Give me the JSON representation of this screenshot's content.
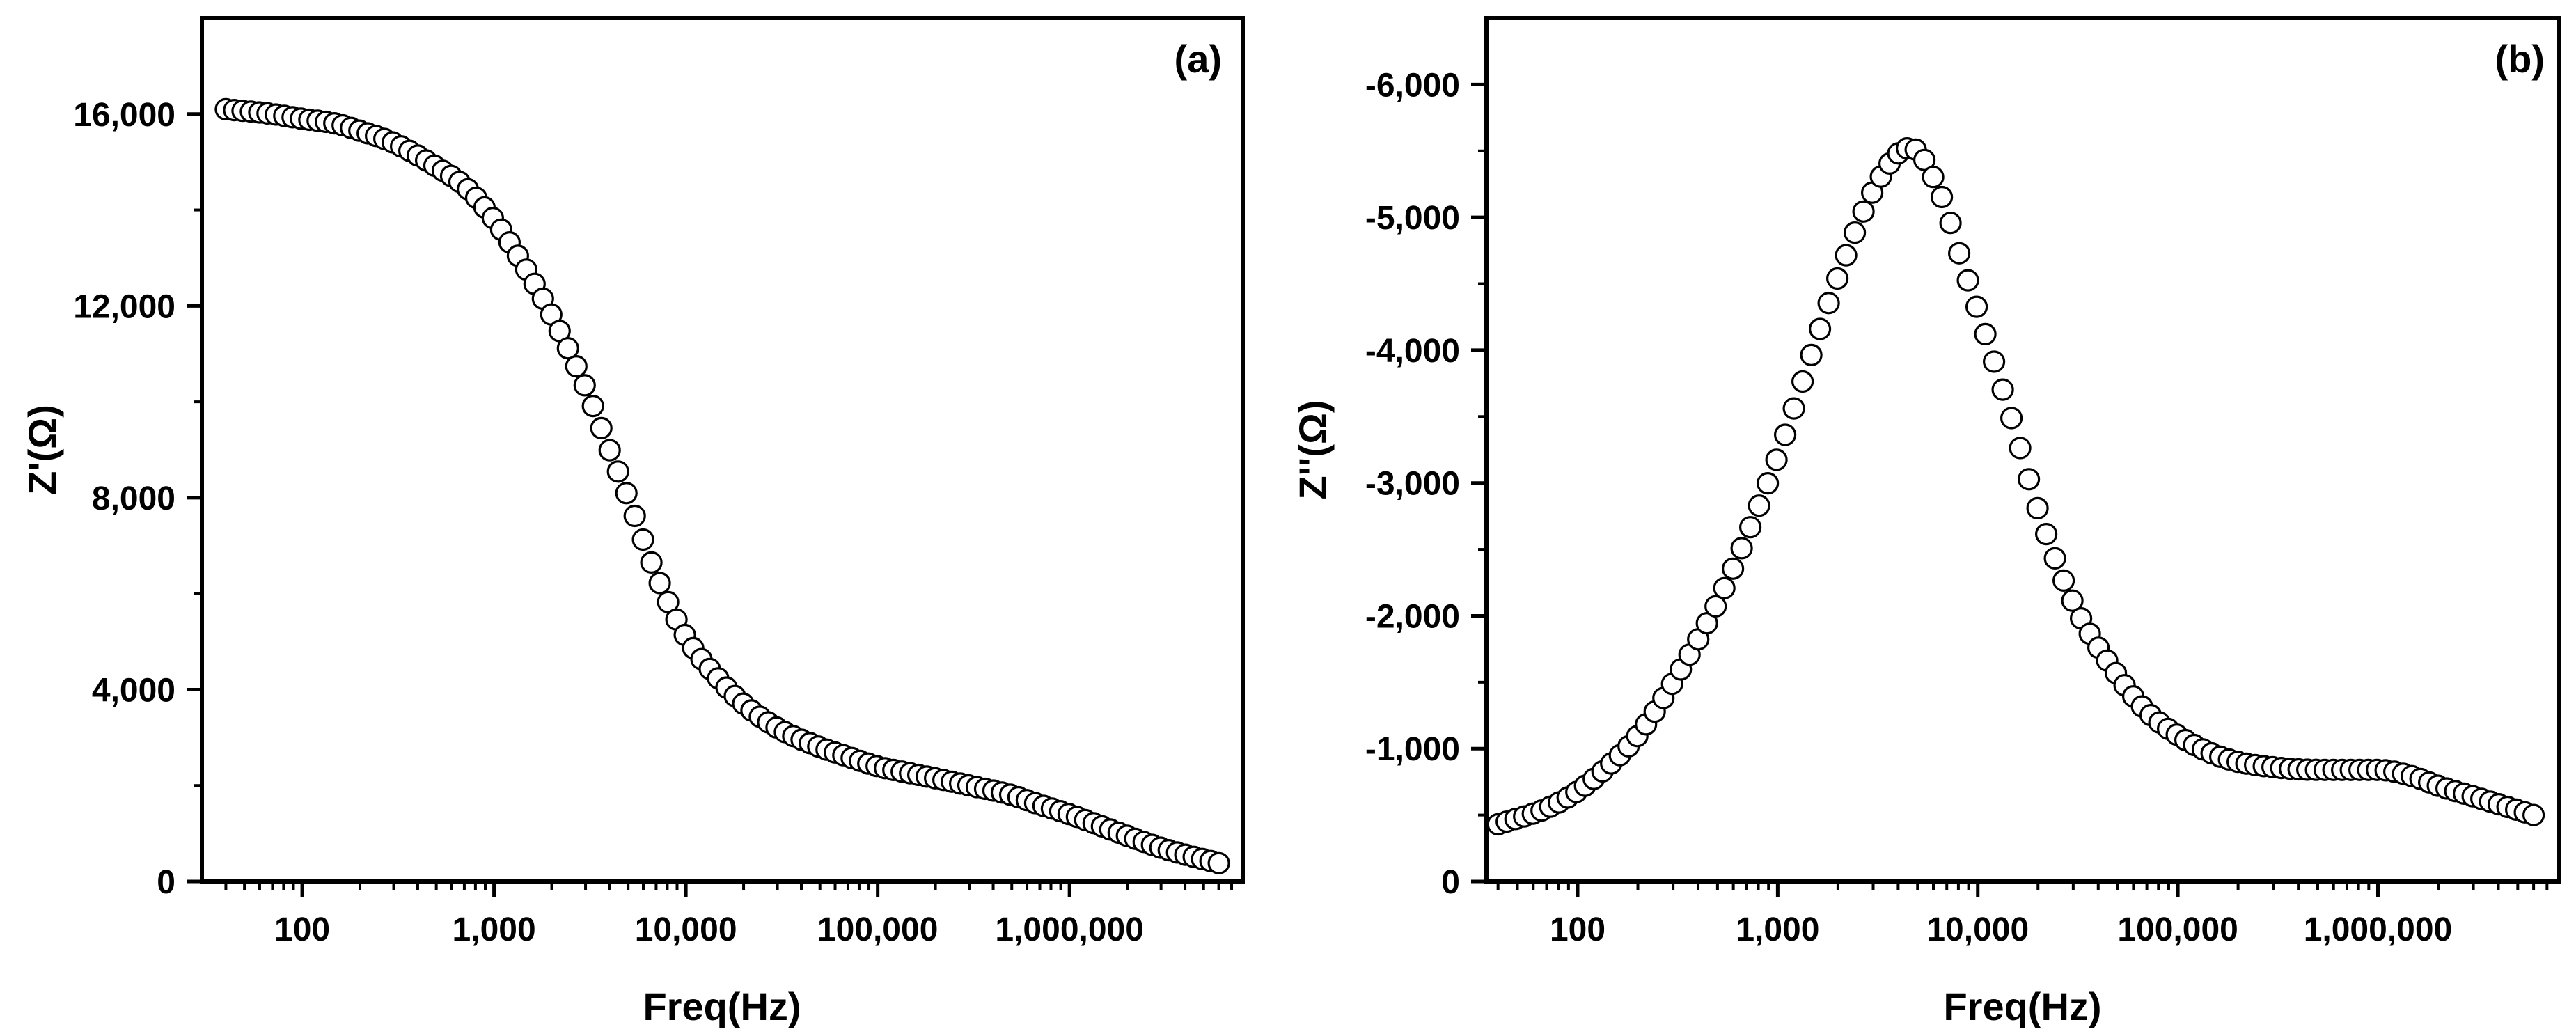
{
  "chart_data": [
    {
      "id": "a",
      "type": "scatter",
      "panel_label": "(a)",
      "xlabel": "Freq(Hz)",
      "ylabel": "Z'(Ω)",
      "xscale": "log",
      "xlim": [
        30,
        8000000
      ],
      "ylim": [
        0,
        18000
      ],
      "x_ticks": [
        100,
        1000,
        10000,
        100000,
        1000000
      ],
      "x_tick_labels": [
        "100",
        "1,000",
        "10,000",
        "100,000",
        "1,000,000"
      ],
      "y_ticks": [
        0,
        4000,
        8000,
        12000,
        16000
      ],
      "y_tick_labels": [
        "0",
        "4,000",
        "8,000",
        "12,000",
        "16,000"
      ],
      "legend": "none",
      "grid": false,
      "marker": "open-circle",
      "series": [
        {
          "name": "Z'",
          "x": [
            40,
            70,
            100,
            150,
            200,
            300,
            500,
            700,
            1000,
            1500,
            2000,
            3000,
            4000,
            5000,
            7000,
            10000,
            15000,
            20000,
            30000,
            50000,
            70000,
            100000,
            150000,
            200000,
            300000,
            500000,
            700000,
            1000000,
            2000000,
            3000000,
            6000000
          ],
          "values": [
            16100,
            16000,
            15900,
            15800,
            15650,
            15400,
            14900,
            14500,
            13800,
            12700,
            11800,
            10300,
            9000,
            8000,
            6400,
            5100,
            4200,
            3700,
            3200,
            2800,
            2600,
            2400,
            2250,
            2150,
            2000,
            1800,
            1600,
            1400,
            950,
            700,
            380
          ]
        }
      ]
    },
    {
      "id": "b",
      "type": "scatter",
      "panel_label": "(b)",
      "xlabel": "Freq(Hz)",
      "ylabel": "Z''(Ω)",
      "xscale": "log",
      "xlim": [
        35,
        8000000
      ],
      "ylim": [
        0,
        -6500
      ],
      "x_ticks": [
        100,
        1000,
        10000,
        100000,
        1000000
      ],
      "x_tick_labels": [
        "100",
        "1,000",
        "10,000",
        "100,000",
        "1,000,000"
      ],
      "y_ticks": [
        0,
        -1000,
        -2000,
        -3000,
        -4000,
        -5000,
        -6000
      ],
      "y_tick_labels": [
        "0",
        "-1,000",
        "-2,000",
        "-3,000",
        "-4,000",
        "-5,000",
        "-6,000"
      ],
      "legend": "none",
      "grid": false,
      "marker": "open-circle",
      "series": [
        {
          "name": "Z''",
          "x": [
            40,
            70,
            100,
            150,
            200,
            300,
            500,
            700,
            1000,
            1500,
            2000,
            3000,
            4000,
            4500,
            5000,
            6000,
            7000,
            8000,
            10000,
            15000,
            20000,
            30000,
            50000,
            70000,
            100000,
            150000,
            200000,
            300000,
            500000,
            1000000,
            1500000,
            2000000,
            3000000,
            6000000
          ],
          "values": [
            -430,
            -550,
            -680,
            -900,
            -1100,
            -1500,
            -2100,
            -2600,
            -3200,
            -4000,
            -4550,
            -5200,
            -5480,
            -5520,
            -5500,
            -5300,
            -5050,
            -4750,
            -4300,
            -3450,
            -2800,
            -2100,
            -1550,
            -1280,
            -1100,
            -960,
            -900,
            -860,
            -840,
            -840,
            -790,
            -720,
            -640,
            -500
          ]
        }
      ]
    }
  ]
}
